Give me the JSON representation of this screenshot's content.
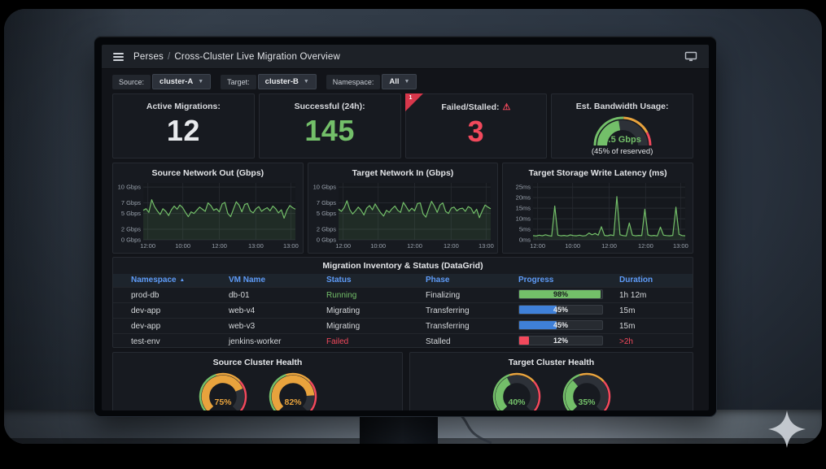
{
  "window": {
    "app": "Perses",
    "separator": "/",
    "title": "Cross-Cluster Live Migration Overview"
  },
  "filters": [
    {
      "label": "Source:",
      "value": "cluster-A"
    },
    {
      "label": "Target:",
      "value": "cluster-B"
    },
    {
      "label": "Namespace:",
      "value": "All"
    }
  ],
  "stats": [
    {
      "title": "Active Migrations:",
      "value": "12",
      "color": "#e8eaed"
    },
    {
      "title": "Successful (24h):",
      "value": "145",
      "color": "#73bf69"
    },
    {
      "title": "Failed/Stalled:",
      "value": "3",
      "color": "#f2495c",
      "corner_badge": "1",
      "warning_icon": "⚠"
    }
  ],
  "chart_data": [
    {
      "type": "area",
      "title": "Source Network Out (Gbps)",
      "ylabel": "Gbps",
      "ylim": [
        0,
        10.8
      ],
      "grid": true,
      "legend": "none",
      "line_color": "#73bf69",
      "yticks": [
        {
          "label": "10 Gbps",
          "value": 10
        },
        {
          "label": "7 Gbps",
          "value": 7
        },
        {
          "label": "5 Gbps",
          "value": 5
        },
        {
          "label": "2 Gbps",
          "value": 2
        },
        {
          "label": "0 Gbps",
          "value": 0
        }
      ],
      "xticks": [
        {
          "label": "12:00",
          "f": 0.03
        },
        {
          "label": "10:00",
          "f": 0.26
        },
        {
          "label": "12:00",
          "f": 0.5
        },
        {
          "label": "13:00",
          "f": 0.74
        },
        {
          "label": "13:00",
          "f": 0.97
        }
      ],
      "values": [
        5.6,
        5.9,
        5.2,
        7.6,
        6.3,
        5.5,
        4.8,
        5.9,
        5.4,
        4.6,
        5.7,
        6.4,
        5.8,
        6.6,
        6.1,
        5.2,
        4.4,
        5.3,
        5.0,
        5.6,
        6.2,
        5.8,
        5.4,
        7.0,
        6.5,
        5.6,
        5.9,
        5.3,
        6.8,
        7.1,
        5.0,
        4.4,
        5.8,
        7.2,
        6.6,
        5.3,
        6.7,
        6.9,
        5.5,
        5.1,
        5.9,
        6.3,
        5.4,
        5.8,
        6.1,
        5.5,
        6.4,
        5.9,
        5.1,
        5.7,
        4.1,
        5.6,
        6.5,
        6.1,
        5.8
      ]
    },
    {
      "type": "area",
      "title": "Target Network In (Gbps)",
      "ylabel": "Gbps",
      "ylim": [
        0,
        10.8
      ],
      "grid": true,
      "legend": "none",
      "line_color": "#73bf69",
      "yticks": [
        {
          "label": "10 Gbps",
          "value": 10
        },
        {
          "label": "7 Gbps",
          "value": 7
        },
        {
          "label": "5 Gbps",
          "value": 5
        },
        {
          "label": "2 Gbps",
          "value": 2
        },
        {
          "label": "0 Gbps",
          "value": 0
        }
      ],
      "xticks": [
        {
          "label": "12:00",
          "f": 0.03
        },
        {
          "label": "10:00",
          "f": 0.26
        },
        {
          "label": "12:00",
          "f": 0.5
        },
        {
          "label": "12:00",
          "f": 0.74
        },
        {
          "label": "13:00",
          "f": 0.97
        }
      ],
      "values": [
        5.8,
        5.4,
        6.1,
        7.4,
        5.7,
        4.9,
        5.5,
        6.2,
        5.6,
        4.7,
        6.0,
        6.5,
        5.7,
        6.8,
        5.9,
        5.1,
        4.5,
        5.6,
        5.2,
        5.9,
        6.4,
        5.6,
        5.2,
        7.1,
        6.3,
        5.4,
        6.0,
        5.5,
        6.9,
        7.0,
        4.9,
        4.3,
        5.9,
        7.3,
        6.4,
        5.2,
        6.6,
        7.0,
        5.4,
        5.0,
        6.0,
        6.2,
        5.5,
        5.9,
        6.0,
        5.4,
        6.3,
        6.0,
        5.0,
        5.8,
        4.2,
        5.5,
        6.6,
        6.2,
        5.9
      ]
    },
    {
      "type": "area",
      "title": "Target Storage Write Latency (ms)",
      "ylabel": "ms",
      "ylim": [
        0,
        27
      ],
      "grid": true,
      "legend": "none",
      "line_color": "#73bf69",
      "yticks": [
        {
          "label": "25ms",
          "value": 25
        },
        {
          "label": "20ms",
          "value": 20
        },
        {
          "label": "15ms",
          "value": 15
        },
        {
          "label": "10ms",
          "value": 10
        },
        {
          "label": "5ms",
          "value": 5
        },
        {
          "label": "0ms",
          "value": 0
        }
      ],
      "xticks": [
        {
          "label": "12:00",
          "f": 0.03
        },
        {
          "label": "10:00",
          "f": 0.26
        },
        {
          "label": "12:00",
          "f": 0.5
        },
        {
          "label": "12:00",
          "f": 0.74
        },
        {
          "label": "13:00",
          "f": 0.97
        }
      ],
      "values": [
        2.0,
        1.8,
        2.2,
        1.9,
        2.4,
        2.0,
        1.7,
        16.0,
        2.2,
        1.9,
        2.1,
        1.8,
        2.3,
        2.0,
        1.9,
        2.2,
        1.8,
        2.0,
        3.2,
        2.4,
        3.0,
        2.2,
        6.2,
        2.1,
        1.9,
        2.3,
        2.0,
        20.5,
        2.4,
        2.0,
        1.8,
        8.0,
        2.2,
        1.9,
        2.1,
        2.0,
        14.5,
        2.3,
        1.9,
        2.1,
        1.8,
        6.0,
        2.2,
        2.0,
        1.9,
        2.1,
        15.5,
        2.6,
        2.0,
        1.9
      ]
    },
    {
      "type": "gauge",
      "title": "Est. Bandwidth Usage:",
      "percent": 45,
      "value_label": "4.5 Gbps",
      "sub_label": "(45% of reserved)",
      "fill_color": "#73bf69"
    },
    {
      "type": "gauge-group",
      "title": "Source Cluster Health",
      "gauges": [
        {
          "percent": 75,
          "label": "75%",
          "color": "#e8a33d"
        },
        {
          "percent": 82,
          "label": "82%",
          "color": "#e8a33d"
        }
      ]
    },
    {
      "type": "gauge-group",
      "title": "Target Cluster Health",
      "gauges": [
        {
          "percent": 40,
          "label": "40%",
          "color": "#73bf69"
        },
        {
          "percent": 35,
          "label": "35%",
          "color": "#73bf69"
        }
      ]
    }
  ],
  "table": {
    "title": "Migration Inventory & Status (DataGrid)",
    "columns": [
      "Namespace",
      "VM Name",
      "Status",
      "Phase",
      "Progress",
      "Duration"
    ],
    "sort": {
      "column": "Namespace",
      "direction": "asc"
    },
    "rows": [
      {
        "namespace": "prod-db",
        "vm_name": "db-01",
        "status": "Running",
        "status_color": "#73bf69",
        "phase": "Finalizing",
        "progress_percent": 98,
        "progress_label": "98%",
        "progress_color": "#73bf69",
        "progress_label_color": "#16181c",
        "duration": "1h 12m",
        "duration_color": "#d5d8db"
      },
      {
        "namespace": "dev-app",
        "vm_name": "web-v4",
        "status": "Migrating",
        "status_color": "#d5d8db",
        "phase": "Transferring",
        "progress_percent": 45,
        "progress_label": "45%",
        "progress_color": "#3f80d8",
        "progress_label_color": "#e8eaed",
        "duration": "15m",
        "duration_color": "#d5d8db"
      },
      {
        "namespace": "dev-app",
        "vm_name": "web-v3",
        "status": "Migrating",
        "status_color": "#d5d8db",
        "phase": "Transferring",
        "progress_percent": 45,
        "progress_label": "45%",
        "progress_color": "#3f80d8",
        "progress_label_color": "#e8eaed",
        "duration": "15m",
        "duration_color": "#d5d8db"
      },
      {
        "namespace": "test-env",
        "vm_name": "jenkins-worker",
        "status": "Failed",
        "status_color": "#f2495c",
        "phase": "Stalled",
        "progress_percent": 12,
        "progress_label": "12%",
        "progress_color": "#f2495c",
        "progress_label_color": "#e8eaed",
        "duration": ">2h",
        "duration_color": "#f2495c"
      }
    ]
  },
  "colors": {
    "green": "#73bf69",
    "amber": "#e8a33d",
    "red": "#f2495c",
    "blue": "#5e9bf7",
    "gauge_track": "#2d3138"
  }
}
